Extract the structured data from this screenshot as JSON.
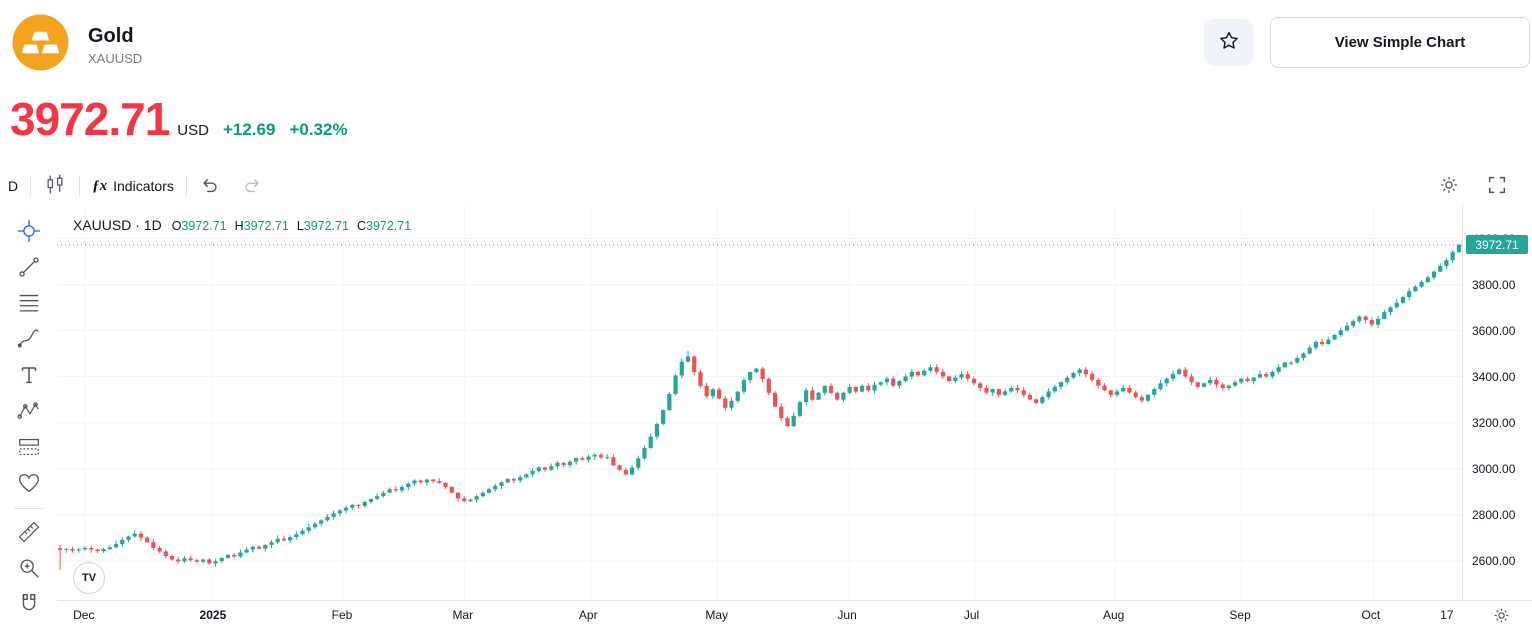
{
  "header": {
    "symbol_title": "Gold",
    "symbol_code": "XAUUSD",
    "view_simple_chart_label": "View Simple Chart",
    "icons": [
      "gold-ingots-logo",
      "star-icon"
    ]
  },
  "quote": {
    "price": "3972.71",
    "currency": "USD",
    "change_abs": "+12.69",
    "change_pct": "+0.32%",
    "price_color": "#f23645",
    "change_color": "#089981"
  },
  "toolbar": {
    "timeframe_label": "D",
    "fx_glyph": "ƒx",
    "indicators_label": "Indicators",
    "icons": [
      "candlestick-style-icon",
      "undo-icon",
      "redo-icon",
      "settings-gear-icon",
      "fullscreen-icon"
    ]
  },
  "tools": [
    "crosshair",
    "trend-line",
    "fib-retracement",
    "brush",
    "text",
    "xabcd-pattern",
    "long-position",
    "emoji-heart",
    "divider",
    "ruler",
    "zoom-in",
    "magnet"
  ],
  "legend": {
    "title": "XAUUSD · 1D",
    "o_label": "O",
    "o_value": "3972.71",
    "h_label": "H",
    "h_value": "3972.71",
    "l_label": "L",
    "l_value": "3972.71",
    "c_label": "C",
    "c_value": "3972.71",
    "value_color": "#089981"
  },
  "watermark": "TV",
  "price_scale": {
    "labels": [
      {
        "text": "4000.00",
        "value": 4000
      },
      {
        "text": "3800.00",
        "value": 3800
      },
      {
        "text": "3600.00",
        "value": 3600
      },
      {
        "text": "3400.00",
        "value": 3400
      },
      {
        "text": "3200.00",
        "value": 3200
      },
      {
        "text": "3000.00",
        "value": 3000
      },
      {
        "text": "2800.00",
        "value": 2800
      },
      {
        "text": "2600.00",
        "value": 2600
      }
    ],
    "last_price_badge": "3972.71",
    "badge_color": "#26a69a"
  },
  "time_scale": {
    "labels": [
      {
        "text": "Dec",
        "pos": 0.02,
        "grid": true,
        "year": false
      },
      {
        "text": "2025",
        "pos": 0.11,
        "grid": true,
        "year": true
      },
      {
        "text": "Feb",
        "pos": 0.204,
        "grid": true,
        "year": false
      },
      {
        "text": "Mar",
        "pos": 0.29,
        "grid": true,
        "year": false
      },
      {
        "text": "Apr",
        "pos": 0.38,
        "grid": true,
        "year": false
      },
      {
        "text": "May",
        "pos": 0.47,
        "grid": true,
        "year": false
      },
      {
        "text": "Jun",
        "pos": 0.564,
        "grid": true,
        "year": false
      },
      {
        "text": "Jul",
        "pos": 0.654,
        "grid": true,
        "year": false
      },
      {
        "text": "Aug",
        "pos": 0.753,
        "grid": true,
        "year": false
      },
      {
        "text": "Sep",
        "pos": 0.843,
        "grid": true,
        "year": false
      },
      {
        "text": "Oct",
        "pos": 0.937,
        "grid": true,
        "year": false
      },
      {
        "text": "17",
        "pos": 0.993,
        "grid": false,
        "year": false
      }
    ]
  },
  "chart_data": {
    "type": "candlestick",
    "symbol": "XAUUSD",
    "interval": "1D",
    "title": "Gold XAUUSD daily candlestick chart, Dec 2024 - Oct 2025",
    "price_min": 2430,
    "price_max": 4150,
    "grid_prices": [
      2600,
      2800,
      3000,
      3200,
      3400,
      3600,
      3800,
      4000
    ],
    "up_color": "#26a69a",
    "down_color": "#ef5350",
    "last_price": 3972.71,
    "first_open": 2655,
    "closes": [
      2648,
      2652,
      2645,
      2650,
      2656,
      2649,
      2643,
      2651,
      2659,
      2673,
      2691,
      2706,
      2718,
      2701,
      2681,
      2656,
      2641,
      2621,
      2606,
      2598,
      2611,
      2603,
      2596,
      2606,
      2589,
      2599,
      2613,
      2626,
      2619,
      2636,
      2649,
      2661,
      2653,
      2669,
      2681,
      2696,
      2689,
      2703,
      2716,
      2731,
      2746,
      2761,
      2776,
      2791,
      2806,
      2819,
      2831,
      2843,
      2839,
      2856,
      2869,
      2881,
      2896,
      2911,
      2906,
      2921,
      2936,
      2949,
      2941,
      2953,
      2946,
      2939,
      2921,
      2896,
      2871,
      2859,
      2866,
      2881,
      2896,
      2911,
      2926,
      2941,
      2956,
      2949,
      2963,
      2976,
      2991,
      3006,
      2996,
      3011,
      3026,
      3016,
      3031,
      3046,
      3039,
      3053,
      3061,
      3049,
      3050,
      3015,
      2995,
      2975,
      3005,
      3045,
      3090,
      3140,
      3195,
      3255,
      3325,
      3405,
      3465,
      3488,
      3420,
      3360,
      3315,
      3345,
      3305,
      3265,
      3295,
      3335,
      3385,
      3420,
      3435,
      3390,
      3330,
      3270,
      3220,
      3185,
      3230,
      3290,
      3340,
      3300,
      3330,
      3360,
      3330,
      3300,
      3330,
      3355,
      3335,
      3360,
      3340,
      3365,
      3376,
      3391,
      3361,
      3381,
      3401,
      3421,
      3406,
      3426,
      3441,
      3421,
      3401,
      3381,
      3396,
      3411,
      3391,
      3371,
      3351,
      3331,
      3346,
      3321,
      3336,
      3351,
      3341,
      3321,
      3301,
      3286,
      3311,
      3336,
      3356,
      3376,
      3396,
      3416,
      3431,
      3411,
      3386,
      3361,
      3341,
      3321,
      3336,
      3351,
      3331,
      3311,
      3296,
      3321,
      3346,
      3371,
      3391,
      3411,
      3431,
      3401,
      3376,
      3356,
      3371,
      3386,
      3366,
      3351,
      3361,
      3376,
      3391,
      3381,
      3396,
      3411,
      3401,
      3421,
      3441,
      3461,
      3461,
      3481,
      3501,
      3526,
      3551,
      3541,
      3561,
      3581,
      3601,
      3621,
      3641,
      3661,
      3646,
      3626,
      3651,
      3681,
      3701,
      3721,
      3746,
      3771,
      3791,
      3811,
      3831,
      3856,
      3881,
      3906,
      3941,
      3972.71
    ],
    "wick_overrides": {
      "0": {
        "low": 2562
      },
      "101": {
        "high": 3512
      }
    }
  }
}
